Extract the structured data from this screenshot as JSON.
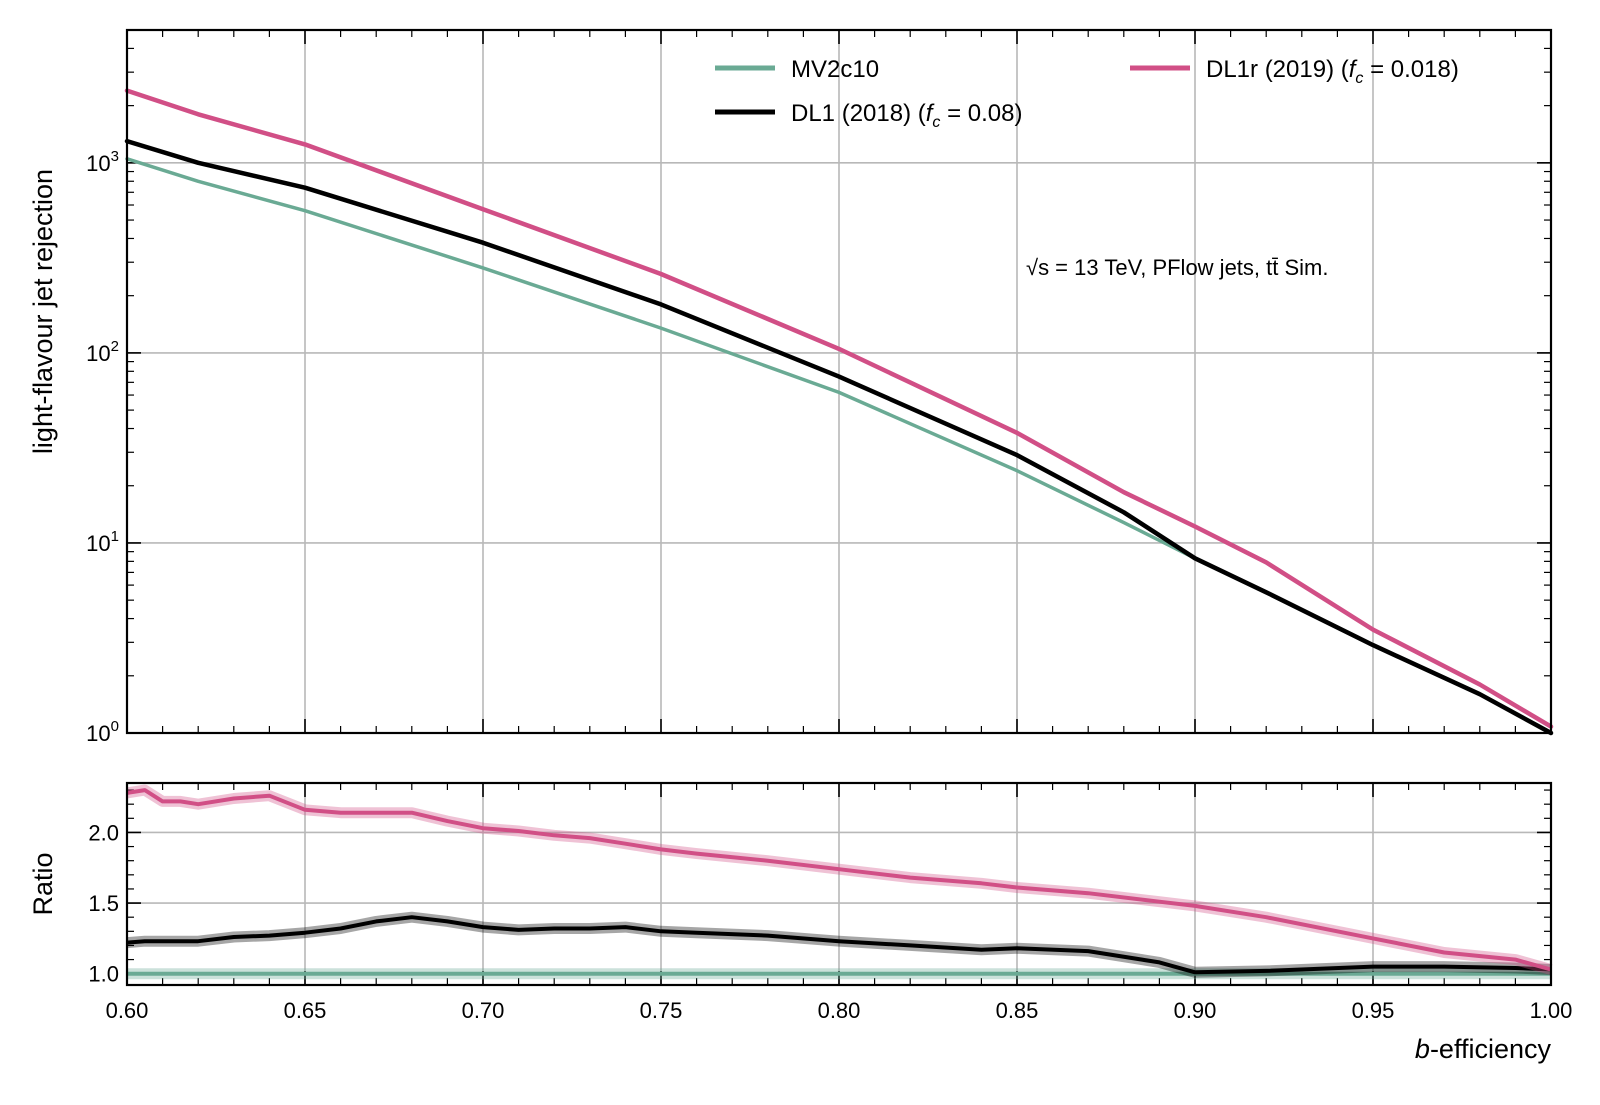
{
  "colors": {
    "MV2c10": "#6aaa94",
    "DL1": "#000000",
    "DL1r": "#d14f86",
    "grid": "#b8b8b8"
  },
  "chart_data": [
    {
      "type": "line",
      "panel": "main",
      "ylabel": "light-flavour jet rejection",
      "yscale": "log",
      "ylim": [
        1,
        5000
      ],
      "xlim": [
        0.6,
        1.0
      ],
      "grid": true,
      "legend_position": "top",
      "y_tick_labels": [
        {
          "base": "10",
          "exp": "0",
          "value": 1
        },
        {
          "base": "10",
          "exp": "1",
          "value": 10
        },
        {
          "base": "10",
          "exp": "2",
          "value": 100
        },
        {
          "base": "10",
          "exp": "3",
          "value": 1000
        }
      ],
      "annotation": "√s = 13 TeV, PFlow jets, tt̄ Sim.",
      "x": [
        0.6,
        0.62,
        0.65,
        0.7,
        0.75,
        0.8,
        0.85,
        0.88,
        0.9,
        0.92,
        0.95,
        0.98,
        1.0
      ],
      "series": [
        {
          "name": "MV2c10",
          "legend_label": "MV2c10",
          "color_key": "MV2c10",
          "values": [
            1050,
            800,
            560,
            280,
            135,
            62,
            24,
            12.8,
            8.3,
            5.5,
            2.9,
            1.6,
            1.0
          ]
        },
        {
          "name": "DL1 (2018) (f_c = 0.08)",
          "legend_label": "DL1 (2018) (",
          "legend_math": "f",
          "legend_sub": "c",
          "legend_value": " = 0.08)",
          "color_key": "DL1",
          "values": [
            1300,
            1000,
            740,
            380,
            180,
            75,
            29,
            14.5,
            8.3,
            5.5,
            2.9,
            1.6,
            1.0
          ]
        },
        {
          "name": "DL1r (2019) (f_c = 0.018)",
          "legend_label": "DL1r (2019) (",
          "legend_math": "f",
          "legend_sub": "c",
          "legend_value": " = 0.018)",
          "color_key": "DL1r",
          "values": [
            2400,
            1800,
            1250,
            570,
            260,
            105,
            38,
            18.5,
            12.2,
            7.9,
            3.5,
            1.8,
            1.08
          ]
        }
      ]
    },
    {
      "type": "line",
      "panel": "ratio",
      "ylabel": "Ratio",
      "xlabel_math": "b",
      "xlabel_rest": "-efficiency",
      "xlim": [
        0.6,
        1.0
      ],
      "ylim": [
        0.92,
        2.35
      ],
      "grid": true,
      "x_ticks": [
        "0.60",
        "0.65",
        "0.70",
        "0.75",
        "0.80",
        "0.85",
        "0.90",
        "0.95",
        "1.00"
      ],
      "y_ticks": [
        "1.0",
        "1.5",
        "2.0"
      ],
      "x": [
        0.6,
        0.605,
        0.61,
        0.615,
        0.62,
        0.63,
        0.64,
        0.65,
        0.66,
        0.67,
        0.68,
        0.69,
        0.7,
        0.71,
        0.72,
        0.73,
        0.74,
        0.75,
        0.76,
        0.78,
        0.8,
        0.82,
        0.84,
        0.85,
        0.87,
        0.89,
        0.9,
        0.92,
        0.95,
        0.97,
        0.99,
        1.0
      ],
      "series": [
        {
          "name": "MV2c10",
          "color_key": "MV2c10",
          "values": [
            1.0,
            1.0,
            1.0,
            1.0,
            1.0,
            1.0,
            1.0,
            1.0,
            1.0,
            1.0,
            1.0,
            1.0,
            1.0,
            1.0,
            1.0,
            1.0,
            1.0,
            1.0,
            1.0,
            1.0,
            1.0,
            1.0,
            1.0,
            1.0,
            1.0,
            1.0,
            1.0,
            1.0,
            1.0,
            1.0,
            1.0,
            1.0
          ]
        },
        {
          "name": "DL1 (2018) (f_c = 0.08)",
          "color_key": "DL1",
          "values": [
            1.22,
            1.23,
            1.23,
            1.23,
            1.23,
            1.26,
            1.27,
            1.29,
            1.32,
            1.37,
            1.4,
            1.37,
            1.33,
            1.31,
            1.32,
            1.32,
            1.33,
            1.3,
            1.29,
            1.27,
            1.23,
            1.2,
            1.17,
            1.18,
            1.16,
            1.08,
            1.01,
            1.02,
            1.05,
            1.05,
            1.04,
            1.03
          ]
        },
        {
          "name": "DL1r (2019) (f_c = 0.018)",
          "color_key": "DL1r",
          "values": [
            2.28,
            2.3,
            2.22,
            2.22,
            2.2,
            2.24,
            2.26,
            2.16,
            2.14,
            2.14,
            2.14,
            2.08,
            2.03,
            2.01,
            1.98,
            1.96,
            1.92,
            1.88,
            1.85,
            1.8,
            1.74,
            1.68,
            1.64,
            1.61,
            1.57,
            1.51,
            1.48,
            1.4,
            1.25,
            1.15,
            1.1,
            1.03
          ]
        }
      ]
    }
  ]
}
